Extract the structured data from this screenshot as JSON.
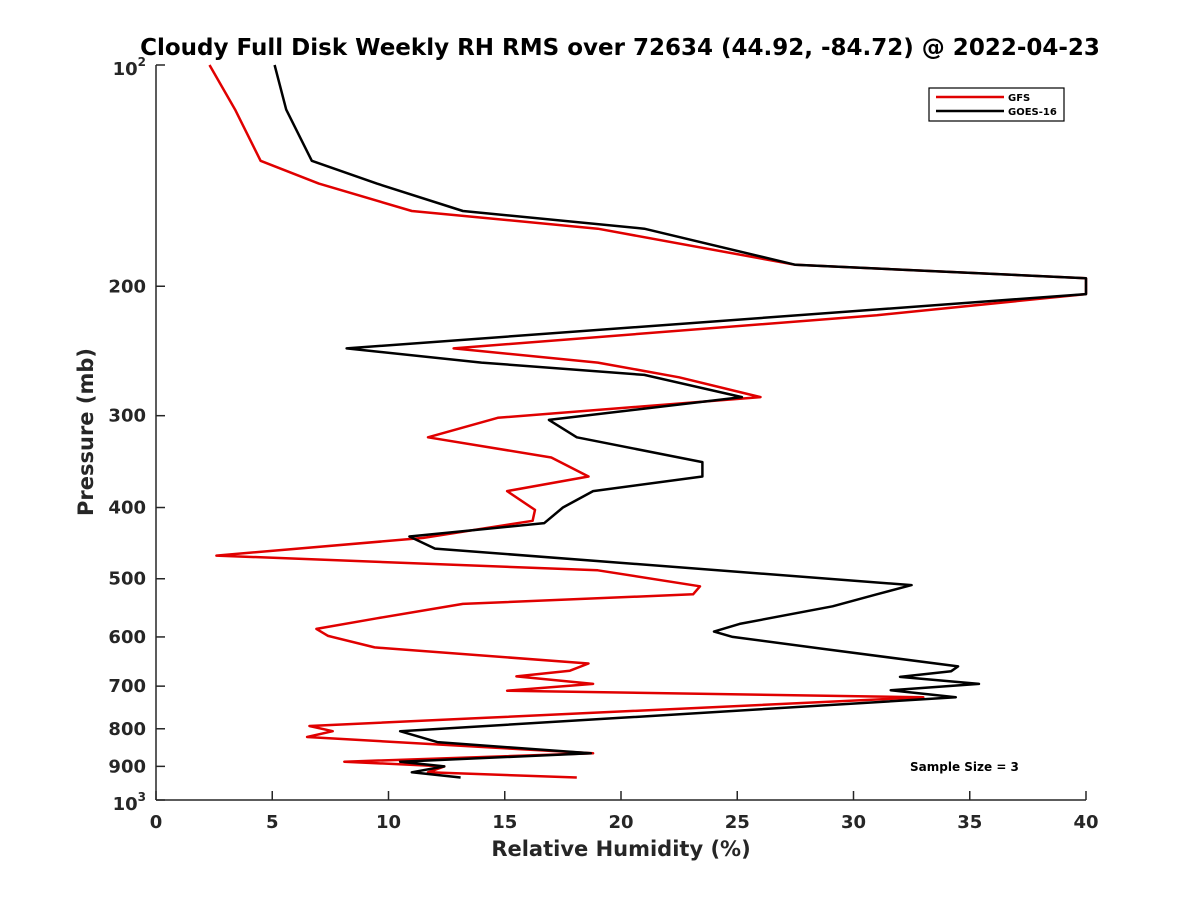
{
  "chart_data": {
    "type": "line",
    "title": "Cloudy Full Disk Weekly RH RMS over 72634 (44.92, -84.72) @ 2022-04-23",
    "xlabel": "Relative Humidity (%)",
    "ylabel": "Pressure (mb)",
    "xlim": [
      0,
      40
    ],
    "ylim": [
      100,
      1000
    ],
    "y_scale": "log",
    "y_reversed": true,
    "x_ticks": [
      "0",
      "5",
      "10",
      "15",
      "20",
      "25",
      "30",
      "35",
      "40"
    ],
    "y_ticks": [
      {
        "value": 100,
        "base": "10",
        "exp": "2"
      },
      {
        "value": 200,
        "label": "200"
      },
      {
        "value": 300,
        "label": "300"
      },
      {
        "value": 400,
        "label": "400"
      },
      {
        "value": 500,
        "label": "500"
      },
      {
        "value": 600,
        "label": "600"
      },
      {
        "value": 700,
        "label": "700"
      },
      {
        "value": 800,
        "label": "800"
      },
      {
        "value": 900,
        "label": "900"
      },
      {
        "value": 1000,
        "base": "10",
        "exp": "3"
      }
    ],
    "legend_position": "top-right",
    "annotation": "Sample Size = 3",
    "series": [
      {
        "name": "GFS",
        "color": "#e00000",
        "points": [
          [
            2.3,
            100
          ],
          [
            3.4,
            115
          ],
          [
            4.5,
            135
          ],
          [
            7,
            145
          ],
          [
            11,
            158
          ],
          [
            19,
            167
          ],
          [
            27.5,
            187
          ],
          [
            40,
            195
          ],
          [
            40,
            205
          ],
          [
            31,
            219
          ],
          [
            12.8,
            243
          ],
          [
            19,
            254
          ],
          [
            22.5,
            266
          ],
          [
            26,
            283
          ],
          [
            14.7,
            302
          ],
          [
            11.7,
            321
          ],
          [
            17,
            342
          ],
          [
            18.6,
            363
          ],
          [
            15.1,
            380
          ],
          [
            16.3,
            403
          ],
          [
            16.2,
            417
          ],
          [
            11.5,
            440
          ],
          [
            2.6,
            465
          ],
          [
            19,
            487
          ],
          [
            23.4,
            512
          ],
          [
            23.1,
            525
          ],
          [
            13.2,
            541
          ],
          [
            9.5,
            566
          ],
          [
            6.9,
            585
          ],
          [
            7.4,
            598
          ],
          [
            9.4,
            620
          ],
          [
            18.6,
            652
          ],
          [
            17.8,
            667
          ],
          [
            15.5,
            679
          ],
          [
            18.8,
            695
          ],
          [
            15.1,
            710
          ],
          [
            33,
            725
          ],
          [
            14.2,
            773
          ],
          [
            6.6,
            793
          ],
          [
            7.6,
            806
          ],
          [
            6.5,
            821
          ],
          [
            18.8,
            864
          ],
          [
            8.1,
            887
          ],
          [
            12.4,
            900
          ],
          [
            11.7,
            917
          ],
          [
            18.1,
            932
          ]
        ]
      },
      {
        "name": "GOES-16",
        "color": "#000000",
        "points": [
          [
            5.1,
            100
          ],
          [
            5.6,
            115
          ],
          [
            6.7,
            135
          ],
          [
            9.5,
            145
          ],
          [
            13.2,
            158
          ],
          [
            21,
            167
          ],
          [
            27.5,
            187
          ],
          [
            40,
            195
          ],
          [
            40,
            205
          ],
          [
            8.2,
            243
          ],
          [
            14,
            254
          ],
          [
            21,
            264
          ],
          [
            25.2,
            283
          ],
          [
            16.9,
            304
          ],
          [
            18.1,
            321
          ],
          [
            23.5,
            347
          ],
          [
            23.5,
            363
          ],
          [
            18.8,
            380
          ],
          [
            17.5,
            400
          ],
          [
            16.7,
            420
          ],
          [
            10.9,
            438
          ],
          [
            12,
            455
          ],
          [
            32.5,
            510
          ],
          [
            31,
            525
          ],
          [
            29.1,
            545
          ],
          [
            25.1,
            576
          ],
          [
            24,
            590
          ],
          [
            24.8,
            600
          ],
          [
            28.7,
            623
          ],
          [
            34.5,
            658
          ],
          [
            34.2,
            668
          ],
          [
            32,
            680
          ],
          [
            35.4,
            695
          ],
          [
            31.6,
            709
          ],
          [
            34.4,
            725
          ],
          [
            20,
            773
          ],
          [
            10.5,
            806
          ],
          [
            12.1,
            834
          ],
          [
            18.7,
            864
          ],
          [
            10.5,
            887
          ],
          [
            12.4,
            900
          ],
          [
            11,
            917
          ],
          [
            13.1,
            932
          ]
        ]
      }
    ]
  }
}
